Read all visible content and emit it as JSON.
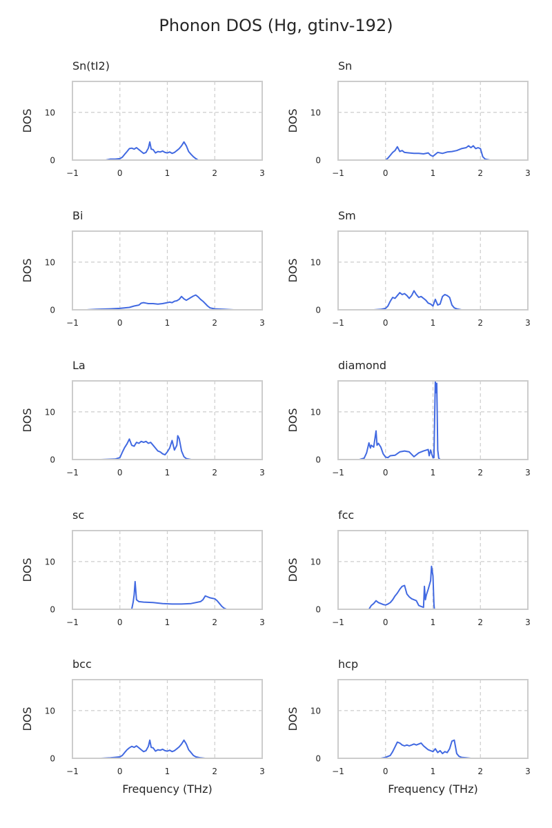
{
  "title": "Phonon DOS (Hg, gtinv-192)",
  "colors": {
    "line": "#4169e1",
    "grid": "#cccccc",
    "frame": "#cccccc",
    "text": "#262626"
  },
  "chart_data": [
    {
      "type": "line",
      "title": "Sn(tI2)",
      "xlabel": "",
      "ylabel": "DOS",
      "xlim": [
        -1,
        3
      ],
      "ylim": [
        0,
        16.5
      ],
      "xticks": [
        -1,
        0,
        1,
        2,
        3
      ],
      "yticks": [
        0,
        10
      ],
      "grid": true,
      "x": [
        -0.3,
        -0.2,
        -0.1,
        0.0,
        0.05,
        0.1,
        0.15,
        0.2,
        0.25,
        0.3,
        0.35,
        0.4,
        0.45,
        0.5,
        0.55,
        0.6,
        0.63,
        0.66,
        0.7,
        0.75,
        0.8,
        0.85,
        0.9,
        0.95,
        1.0,
        1.05,
        1.1,
        1.15,
        1.2,
        1.25,
        1.3,
        1.35,
        1.4,
        1.45,
        1.5,
        1.55,
        1.6,
        1.65
      ],
      "values": [
        0,
        0.2,
        0.2,
        0.3,
        0.6,
        1.2,
        1.8,
        2.4,
        2.5,
        2.3,
        2.6,
        2.2,
        1.8,
        1.4,
        1.6,
        2.5,
        3.8,
        2.3,
        2.2,
        1.5,
        1.8,
        1.7,
        1.9,
        1.6,
        1.5,
        1.7,
        1.4,
        1.6,
        2.0,
        2.4,
        3.0,
        3.8,
        3.0,
        1.8,
        1.2,
        0.7,
        0.3,
        0
      ]
    },
    {
      "type": "line",
      "title": "Sn",
      "xlabel": "",
      "ylabel": "DOS",
      "xlim": [
        -1,
        3
      ],
      "ylim": [
        0,
        16.5
      ],
      "xticks": [
        -1,
        0,
        1,
        2,
        3
      ],
      "yticks": [
        0,
        10
      ],
      "grid": true,
      "x": [
        0.0,
        0.05,
        0.1,
        0.15,
        0.2,
        0.25,
        0.3,
        0.35,
        0.4,
        0.5,
        0.6,
        0.7,
        0.8,
        0.9,
        0.95,
        1.0,
        1.05,
        1.1,
        1.2,
        1.3,
        1.4,
        1.5,
        1.6,
        1.7,
        1.75,
        1.8,
        1.85,
        1.9,
        1.95,
        2.0,
        2.05,
        2.1,
        2.2
      ],
      "values": [
        0,
        0.4,
        1.0,
        1.6,
        2.0,
        2.8,
        1.8,
        2.0,
        1.6,
        1.5,
        1.4,
        1.4,
        1.3,
        1.5,
        1.0,
        0.8,
        1.2,
        1.6,
        1.4,
        1.7,
        1.8,
        2.0,
        2.4,
        2.6,
        3.0,
        2.6,
        3.0,
        2.4,
        2.6,
        2.4,
        0.7,
        0.2,
        0
      ]
    },
    {
      "type": "line",
      "title": "Bi",
      "xlabel": "",
      "ylabel": "DOS",
      "xlim": [
        -1,
        3
      ],
      "ylim": [
        0,
        16.5
      ],
      "xticks": [
        -1,
        0,
        1,
        2,
        3
      ],
      "yticks": [
        0,
        10
      ],
      "grid": true,
      "x": [
        -0.7,
        -0.5,
        -0.2,
        0.0,
        0.2,
        0.3,
        0.4,
        0.45,
        0.5,
        0.55,
        0.6,
        0.7,
        0.8,
        0.9,
        1.0,
        1.05,
        1.1,
        1.15,
        1.2,
        1.25,
        1.3,
        1.35,
        1.4,
        1.45,
        1.5,
        1.55,
        1.6,
        1.65,
        1.7,
        1.75,
        1.8,
        1.85,
        1.9,
        2.0,
        2.2,
        2.4
      ],
      "values": [
        0,
        0.1,
        0.2,
        0.3,
        0.5,
        0.8,
        1.0,
        1.4,
        1.5,
        1.4,
        1.3,
        1.3,
        1.2,
        1.3,
        1.5,
        1.6,
        1.5,
        1.8,
        1.9,
        2.2,
        2.8,
        2.3,
        2.0,
        2.3,
        2.6,
        2.9,
        3.1,
        2.7,
        2.2,
        1.8,
        1.3,
        0.8,
        0.4,
        0.2,
        0.1,
        0
      ]
    },
    {
      "type": "line",
      "title": "Sm",
      "xlabel": "",
      "ylabel": "DOS",
      "xlim": [
        -1,
        3
      ],
      "ylim": [
        0,
        16.5
      ],
      "xticks": [
        -1,
        0,
        1,
        2,
        3
      ],
      "yticks": [
        0,
        10
      ],
      "grid": true,
      "x": [
        -0.25,
        -0.1,
        0.0,
        0.05,
        0.1,
        0.15,
        0.2,
        0.25,
        0.3,
        0.35,
        0.4,
        0.45,
        0.5,
        0.55,
        0.6,
        0.65,
        0.7,
        0.75,
        0.8,
        0.85,
        0.9,
        0.95,
        1.0,
        1.05,
        1.1,
        1.15,
        1.2,
        1.25,
        1.3,
        1.35,
        1.4,
        1.45,
        1.5,
        1.6
      ],
      "values": [
        0,
        0.1,
        0.3,
        0.8,
        1.8,
        2.6,
        2.4,
        3.0,
        3.6,
        3.2,
        3.4,
        3.0,
        2.4,
        3.0,
        4.0,
        3.2,
        2.6,
        2.8,
        2.4,
        2.0,
        1.4,
        1.2,
        0.8,
        2.2,
        1.0,
        1.2,
        2.8,
        3.2,
        3.0,
        2.6,
        1.0,
        0.4,
        0.2,
        0
      ]
    },
    {
      "type": "line",
      "title": "La",
      "xlabel": "",
      "ylabel": "DOS",
      "xlim": [
        -1,
        3
      ],
      "ylim": [
        0,
        16.5
      ],
      "xticks": [
        -1,
        0,
        1,
        2,
        3
      ],
      "yticks": [
        0,
        10
      ],
      "grid": true,
      "x": [
        -0.4,
        -0.1,
        0.0,
        0.05,
        0.1,
        0.15,
        0.2,
        0.25,
        0.3,
        0.35,
        0.4,
        0.45,
        0.5,
        0.55,
        0.6,
        0.65,
        0.7,
        0.75,
        0.8,
        0.85,
        0.9,
        0.95,
        1.0,
        1.05,
        1.1,
        1.15,
        1.2,
        1.22,
        1.25,
        1.3,
        1.35,
        1.4,
        1.5
      ],
      "values": [
        0,
        0.1,
        0.4,
        1.5,
        2.5,
        3.3,
        4.3,
        3.0,
        2.8,
        3.6,
        3.4,
        3.8,
        3.6,
        3.8,
        3.4,
        3.6,
        3.0,
        2.4,
        1.8,
        1.6,
        1.2,
        1.0,
        1.6,
        2.4,
        4.0,
        2.0,
        3.0,
        5.0,
        4.4,
        1.8,
        0.6,
        0.2,
        0
      ]
    },
    {
      "type": "line",
      "title": "diamond",
      "xlabel": "",
      "ylabel": "DOS",
      "xlim": [
        -1,
        3
      ],
      "ylim": [
        0,
        16.5
      ],
      "xticks": [
        -1,
        0,
        1,
        2,
        3
      ],
      "yticks": [
        0,
        10
      ],
      "grid": true,
      "x": [
        -0.55,
        -0.45,
        -0.4,
        -0.35,
        -0.32,
        -0.3,
        -0.25,
        -0.2,
        -0.18,
        -0.15,
        -0.1,
        -0.05,
        0.0,
        0.05,
        0.1,
        0.2,
        0.3,
        0.4,
        0.5,
        0.6,
        0.7,
        0.8,
        0.9,
        0.92,
        0.95,
        0.98,
        1.0,
        1.02,
        1.05,
        1.06,
        1.08,
        1.1,
        1.12,
        1.15
      ],
      "values": [
        0,
        0.3,
        1.4,
        3.5,
        2.4,
        3.0,
        2.6,
        6.0,
        3.0,
        3.4,
        2.6,
        1.2,
        0.5,
        0.4,
        0.8,
        0.9,
        1.6,
        1.8,
        1.6,
        0.6,
        1.4,
        1.8,
        2.1,
        0.8,
        2.0,
        1.0,
        0.4,
        0.4,
        16.5,
        14.0,
        16.0,
        2.0,
        0.3,
        0
      ]
    },
    {
      "type": "line",
      "title": "sc",
      "xlabel": "",
      "ylabel": "DOS",
      "xlim": [
        -1,
        3
      ],
      "ylim": [
        0,
        16.5
      ],
      "xticks": [
        -1,
        0,
        1,
        2,
        3
      ],
      "yticks": [
        0,
        10
      ],
      "grid": true,
      "x": [
        0.25,
        0.28,
        0.3,
        0.32,
        0.35,
        0.4,
        0.5,
        0.7,
        0.9,
        1.1,
        1.3,
        1.5,
        1.7,
        1.75,
        1.8,
        1.85,
        1.9,
        1.95,
        2.0,
        2.05,
        2.1,
        2.15,
        2.2,
        2.25
      ],
      "values": [
        0,
        1.5,
        3.0,
        5.8,
        2.0,
        1.6,
        1.5,
        1.4,
        1.2,
        1.1,
        1.1,
        1.2,
        1.6,
        2.0,
        2.8,
        2.6,
        2.4,
        2.3,
        2.2,
        1.8,
        1.2,
        0.6,
        0.2,
        0
      ]
    },
    {
      "type": "line",
      "title": "fcc",
      "xlabel": "",
      "ylabel": "DOS",
      "xlim": [
        -1,
        3
      ],
      "ylim": [
        0,
        16.5
      ],
      "xticks": [
        -1,
        0,
        1,
        2,
        3
      ],
      "yticks": [
        0,
        10
      ],
      "grid": true,
      "x": [
        -0.35,
        -0.3,
        -0.25,
        -0.2,
        -0.15,
        -0.1,
        -0.05,
        0.0,
        0.05,
        0.1,
        0.15,
        0.2,
        0.25,
        0.3,
        0.35,
        0.4,
        0.45,
        0.5,
        0.55,
        0.6,
        0.65,
        0.7,
        0.75,
        0.8,
        0.82,
        0.84,
        0.86,
        0.9,
        0.95,
        0.97,
        1.0,
        1.02,
        1.03
      ],
      "values": [
        0,
        0.8,
        1.2,
        1.8,
        1.4,
        1.2,
        1.0,
        0.9,
        1.1,
        1.4,
        2.0,
        2.8,
        3.4,
        4.2,
        4.8,
        5.0,
        3.2,
        2.6,
        2.2,
        2.0,
        1.8,
        0.8,
        0.6,
        0.4,
        4.8,
        2.0,
        3.0,
        4.2,
        6.0,
        9.0,
        7.0,
        1.0,
        0
      ]
    },
    {
      "type": "line",
      "title": "bcc",
      "xlabel": "",
      "ylabel": "DOS",
      "xlim": [
        -1,
        3
      ],
      "ylim": [
        0,
        16.5
      ],
      "xticks": [
        -1,
        0,
        1,
        2,
        3
      ],
      "yticks": [
        0,
        10
      ],
      "grid": true,
      "x": [
        -0.4,
        -0.2,
        -0.1,
        0.0,
        0.05,
        0.1,
        0.15,
        0.2,
        0.25,
        0.3,
        0.35,
        0.4,
        0.45,
        0.5,
        0.55,
        0.6,
        0.63,
        0.66,
        0.7,
        0.75,
        0.8,
        0.85,
        0.9,
        0.95,
        1.0,
        1.05,
        1.1,
        1.15,
        1.2,
        1.25,
        1.3,
        1.35,
        1.4,
        1.45,
        1.5,
        1.55,
        1.6,
        1.7,
        1.8
      ],
      "values": [
        0,
        0.1,
        0.2,
        0.3,
        0.6,
        1.2,
        1.8,
        2.2,
        2.5,
        2.3,
        2.6,
        2.2,
        1.8,
        1.4,
        1.6,
        2.5,
        3.8,
        2.3,
        2.2,
        1.5,
        1.8,
        1.7,
        1.9,
        1.6,
        1.5,
        1.7,
        1.4,
        1.6,
        2.0,
        2.4,
        3.0,
        3.8,
        3.0,
        1.8,
        1.2,
        0.6,
        0.3,
        0.1,
        0
      ]
    },
    {
      "type": "line",
      "title": "hcp",
      "xlabel": "",
      "ylabel": "DOS",
      "xlim": [
        -1,
        3
      ],
      "ylim": [
        0,
        16.5
      ],
      "xticks": [
        -1,
        0,
        1,
        2,
        3
      ],
      "yticks": [
        0,
        10
      ],
      "grid": true,
      "x": [
        -0.1,
        0.0,
        0.1,
        0.15,
        0.2,
        0.25,
        0.3,
        0.35,
        0.4,
        0.45,
        0.5,
        0.55,
        0.6,
        0.65,
        0.7,
        0.75,
        0.8,
        0.85,
        0.9,
        0.95,
        1.0,
        1.05,
        1.1,
        1.15,
        1.2,
        1.25,
        1.3,
        1.35,
        1.4,
        1.45,
        1.5,
        1.55,
        1.6,
        1.7,
        1.8
      ],
      "values": [
        0,
        0.2,
        0.6,
        1.4,
        2.4,
        3.4,
        3.2,
        2.8,
        2.6,
        2.8,
        2.6,
        2.8,
        3.0,
        2.8,
        3.0,
        3.2,
        2.6,
        2.2,
        1.8,
        1.6,
        1.4,
        2.0,
        1.2,
        1.6,
        1.0,
        1.4,
        1.2,
        2.0,
        3.6,
        3.8,
        1.0,
        0.4,
        0.2,
        0.1,
        0
      ]
    }
  ],
  "xlabel_bottom": "Frequency (THz)"
}
